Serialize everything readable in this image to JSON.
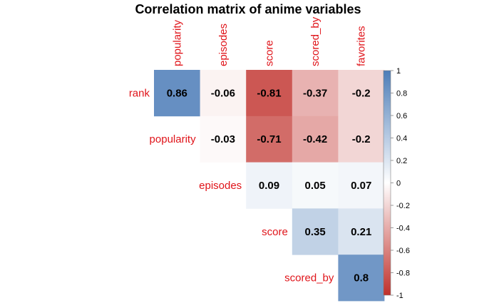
{
  "chart_data": {
    "type": "heatmap",
    "title": "Correlation matrix of anime variables",
    "columns": [
      "popularity",
      "episodes",
      "score",
      "scored_by",
      "favorites"
    ],
    "rows": [
      "rank",
      "popularity",
      "episodes",
      "score",
      "scored_by"
    ],
    "matrix": [
      [
        0.86,
        -0.06,
        -0.81,
        -0.37,
        -0.2
      ],
      [
        null,
        -0.03,
        -0.71,
        -0.42,
        -0.2
      ],
      [
        null,
        null,
        0.09,
        0.05,
        0.07
      ],
      [
        null,
        null,
        null,
        0.35,
        0.21
      ],
      [
        null,
        null,
        null,
        null,
        0.8
      ]
    ],
    "colorbar": {
      "range": [
        -1,
        1
      ],
      "ticks": [
        1,
        0.8,
        0.6,
        0.4,
        0.2,
        0,
        -0.2,
        -0.4,
        -0.6,
        -0.8,
        -1
      ],
      "colors": {
        "negative": "#C0302B",
        "neutral": "#FFFFFF",
        "positive": "#4D7DB8"
      }
    },
    "label_color": "#E0141A"
  }
}
